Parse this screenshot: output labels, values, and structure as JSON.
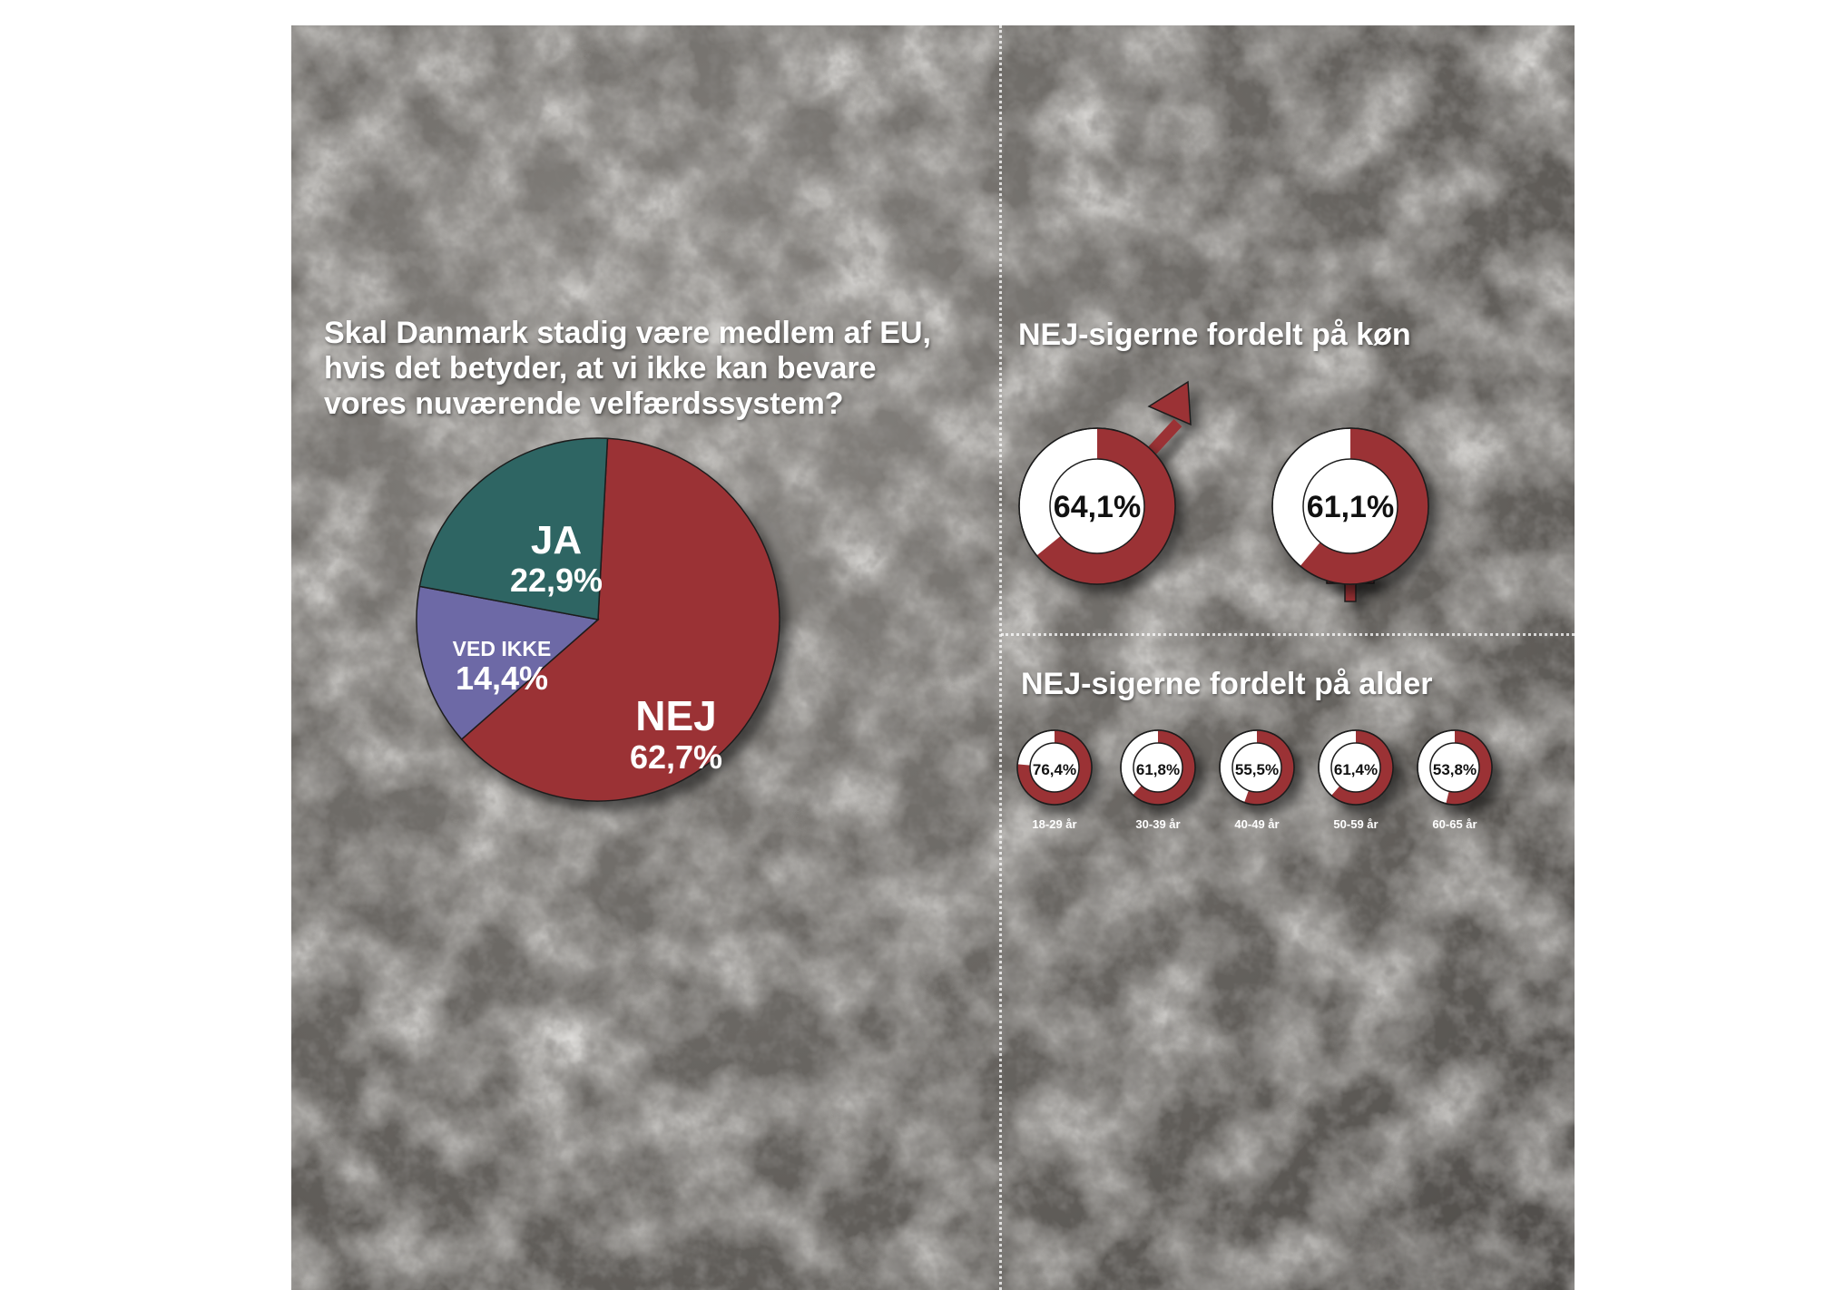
{
  "colors": {
    "nej": "#9b3134",
    "ja": "#2e6564",
    "ved_ikke": "#6d69a6",
    "ring_rest": "#ffffff",
    "outline": "#1e1e1e"
  },
  "main_question": {
    "lines": [
      "Skal Danmark stadig være medlem af EU,",
      "hvis det betyder, at vi ikke kan bevare",
      "vores nuværende velfærdssystem?"
    ]
  },
  "gender_title": "NEJ-sigerne fordelt på køn",
  "age_title": "NEJ-sigerne fordelt på alder",
  "icons": [
    "male-symbol-icon",
    "female-symbol-icon"
  ],
  "chart_data": [
    {
      "type": "pie",
      "title": "Skal Danmark stadig være medlem af EU, hvis det betyder, at vi ikke kan bevare vores nuværende velfærdssystem?",
      "slices": [
        {
          "label": "NEJ",
          "value": 62.7,
          "display": "62,7%",
          "color": "#9b3134"
        },
        {
          "label": "JA",
          "value": 22.9,
          "display": "22,9%",
          "color": "#2e6564"
        },
        {
          "label": "VED IKKE",
          "value": 14.4,
          "display": "14,4%",
          "color": "#6d69a6"
        }
      ]
    },
    {
      "type": "pie",
      "title": "NEJ-sigerne fordelt på køn",
      "items": [
        {
          "label": "",
          "symbol": "male-symbol-icon",
          "value": 64.1,
          "display": "64,1%"
        },
        {
          "label": "",
          "symbol": "female-symbol-icon",
          "value": 61.1,
          "display": "61,1%"
        }
      ]
    },
    {
      "type": "pie",
      "title": "NEJ-sigerne fordelt på alder",
      "items": [
        {
          "label": "18-29 år",
          "value": 76.4,
          "display": "76,4%"
        },
        {
          "label": "30-39 år",
          "value": 61.8,
          "display": "61,8%"
        },
        {
          "label": "40-49 år",
          "value": 55.5,
          "display": "55,5%"
        },
        {
          "label": "50-59 år",
          "value": 61.4,
          "display": "61,4%"
        },
        {
          "label": "60-65 år",
          "value": 53.8,
          "display": "53,8%"
        }
      ]
    }
  ]
}
